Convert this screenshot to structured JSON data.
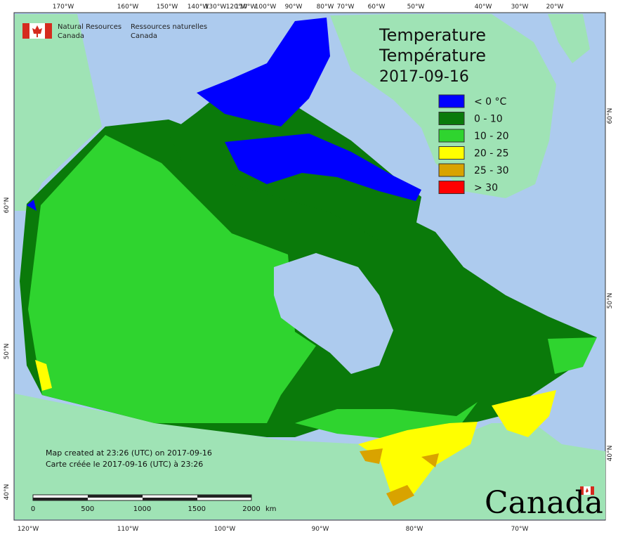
{
  "header": {
    "org_en": [
      "Natural Resources",
      "Canada"
    ],
    "org_fr": [
      "Ressources naturelles",
      "Canada"
    ]
  },
  "title": {
    "en": "Temperature",
    "fr": "Température",
    "date": "2017-09-16"
  },
  "legend": [
    {
      "label": "< 0 °C",
      "color": "#0000ff"
    },
    {
      "label": "0 - 10",
      "color": "#0a7a0a"
    },
    {
      "label": "10 - 20",
      "color": "#2fd42f"
    },
    {
      "label": "20 - 25",
      "color": "#ffff00"
    },
    {
      "label": "25 - 30",
      "color": "#d9a300"
    },
    {
      "label": "> 30",
      "color": "#ff0000"
    }
  ],
  "graticule": {
    "top": [
      "170°W",
      "160°W",
      "150°W",
      "140°W",
      "130°W",
      "120°W",
      "110°W",
      "100°W",
      "90°W",
      "80°W",
      "70°W",
      "60°W",
      "50°W",
      "40°W",
      "30°W",
      "20°W"
    ],
    "bottom": [
      "120°W",
      "110°W",
      "100°W",
      "90°W",
      "80°W",
      "70°W"
    ],
    "left": [
      "60°N",
      "50°N",
      "40°N"
    ],
    "right": [
      "60°N",
      "50°N",
      "40°N"
    ]
  },
  "notes": [
    "Map created at 23:26 (UTC) on 2017-09-16",
    "Carte créée le 2017-09-16 (UTC) à 23:26"
  ],
  "scale": {
    "ticks": [
      0,
      500,
      1000,
      1500,
      2000
    ],
    "unit": "km"
  },
  "wordmark": "Canada"
}
